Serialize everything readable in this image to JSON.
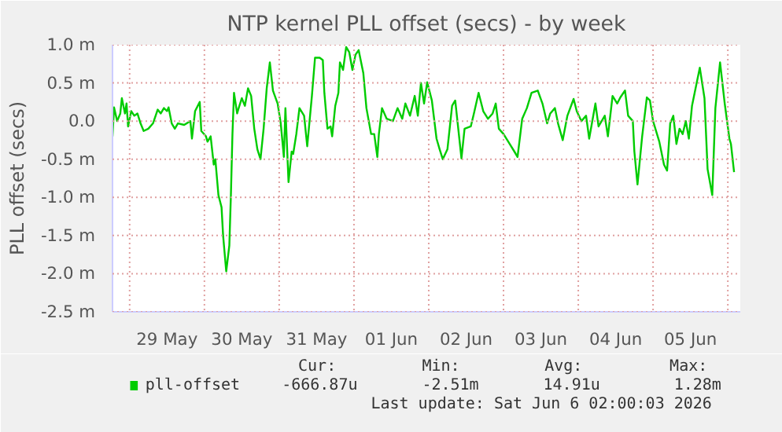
{
  "chart_data": {
    "type": "line",
    "title": "NTP kernel PLL offset (secs) - by week",
    "ylabel": "PLL offset (secs)",
    "xlim": [
      "2026-05-28T18:30",
      "2026-06-06T04:00"
    ],
    "ylim": [
      -2.5,
      1.0
    ],
    "yticks": [
      {
        "value": -2.5,
        "label": "-2.5 m"
      },
      {
        "value": -2.0,
        "label": "-2.0 m"
      },
      {
        "value": -1.5,
        "label": "-1.5 m"
      },
      {
        "value": -1.0,
        "label": "-1.0 m"
      },
      {
        "value": -0.5,
        "label": "-0.5 m"
      },
      {
        "value": 0,
        "label": "0.0"
      },
      {
        "value": 0.5,
        "label": "0.5 m"
      },
      {
        "value": 1.0,
        "label": "1.0 m"
      }
    ],
    "xticks": [
      {
        "value": "2026-05-29",
        "label": null
      },
      {
        "value": "2026-05-29T12:00",
        "label": "29 May"
      },
      {
        "value": "2026-05-30",
        "label": null
      },
      {
        "value": "2026-05-30T12:00",
        "label": "30 May"
      },
      {
        "value": "2026-05-31",
        "label": null
      },
      {
        "value": "2026-05-31T12:00",
        "label": "31 May"
      },
      {
        "value": "2026-06-01",
        "label": null
      },
      {
        "value": "2026-06-01T12:00",
        "label": "01 Jun"
      },
      {
        "value": "2026-06-02",
        "label": null
      },
      {
        "value": "2026-06-02T12:00",
        "label": "02 Jun"
      },
      {
        "value": "2026-06-03",
        "label": null
      },
      {
        "value": "2026-06-03T12:00",
        "label": "03 Jun"
      },
      {
        "value": "2026-06-04",
        "label": null
      },
      {
        "value": "2026-06-04T12:00",
        "label": "04 Jun"
      },
      {
        "value": "2026-06-05",
        "label": null
      },
      {
        "value": "2026-06-05T12:00",
        "label": "05 Jun"
      },
      {
        "value": "2026-06-06",
        "label": null
      }
    ],
    "grid": true,
    "legend": "bottom",
    "x": [
      "2026-05-28T18:30",
      "2026-05-28T19:00",
      "2026-05-28T20:00",
      "2026-05-28T21:00",
      "2026-05-28T21:30",
      "2026-05-28T22:30",
      "2026-05-28T23:00",
      "2026-05-28T23:30",
      "2026-05-29T00:30",
      "2026-05-29T01:30",
      "2026-05-29T02:30",
      "2026-05-29T03:30",
      "2026-05-29T04:30",
      "2026-05-29T06:00",
      "2026-05-29T07:30",
      "2026-05-29T09:00",
      "2026-05-29T10:00",
      "2026-05-29T11:00",
      "2026-05-29T12:00",
      "2026-05-29T12:30",
      "2026-05-29T13:30",
      "2026-05-29T14:30",
      "2026-05-29T15:30",
      "2026-05-29T17:30",
      "2026-05-29T19:30",
      "2026-05-29T20:00",
      "2026-05-29T21:00",
      "2026-05-29T22:30",
      "2026-05-29T23:00",
      "2026-05-30T00:30",
      "2026-05-30T01:00",
      "2026-05-30T02:00",
      "2026-05-30T03:00",
      "2026-05-30T03:30",
      "2026-05-30T04:30",
      "2026-05-30T05:30",
      "2026-05-30T06:00",
      "2026-05-30T07:00",
      "2026-05-30T08:00",
      "2026-05-30T08:30",
      "2026-05-30T09:00",
      "2026-05-30T09:30",
      "2026-05-30T10:30",
      "2026-05-30T11:00",
      "2026-05-30T12:00",
      "2026-05-30T13:00",
      "2026-05-30T14:00",
      "2026-05-30T15:00",
      "2026-05-30T16:00",
      "2026-05-30T17:00",
      "2026-05-30T18:00",
      "2026-05-30T19:00",
      "2026-05-30T20:00",
      "2026-05-30T21:00",
      "2026-05-30T22:00",
      "2026-05-30T23:30",
      "2026-05-31T00:30",
      "2026-05-31T01:30",
      "2026-05-31T02:00",
      "2026-05-31T03:00",
      "2026-05-31T04:00",
      "2026-05-31T04:30",
      "2026-05-31T05:30",
      "2026-05-31T06:30",
      "2026-05-31T08:00",
      "2026-05-31T09:00",
      "2026-05-31T10:30",
      "2026-05-31T11:30",
      "2026-05-31T13:00",
      "2026-05-31T14:00",
      "2026-05-31T14:30",
      "2026-05-31T15:30",
      "2026-05-31T16:30",
      "2026-05-31T17:00",
      "2026-05-31T18:00",
      "2026-05-31T19:00",
      "2026-05-31T19:30",
      "2026-05-31T20:30",
      "2026-05-31T21:30",
      "2026-05-31T22:30",
      "2026-05-31T23:30",
      "2026-06-01T00:30",
      "2026-06-01T01:30",
      "2026-06-01T03:00",
      "2026-06-01T04:00",
      "2026-06-01T05:30",
      "2026-06-01T06:30",
      "2026-06-01T07:30",
      "2026-06-01T08:00",
      "2026-06-01T09:00",
      "2026-06-01T10:30",
      "2026-06-01T12:30",
      "2026-06-01T14:00",
      "2026-06-01T15:30",
      "2026-06-01T16:30",
      "2026-06-01T18:00",
      "2026-06-01T19:30",
      "2026-06-01T20:30",
      "2026-06-01T21:30",
      "2026-06-01T22:30",
      "2026-06-01T23:30",
      "2026-06-02T01:00",
      "2026-06-02T02:30",
      "2026-06-02T03:30",
      "2026-06-02T04:30",
      "2026-06-02T06:00",
      "2026-06-02T07:30",
      "2026-06-02T08:30",
      "2026-06-02T10:30",
      "2026-06-02T11:30",
      "2026-06-02T13:30",
      "2026-06-02T14:30",
      "2026-06-02T16:00",
      "2026-06-02T17:30",
      "2026-06-02T19:00",
      "2026-06-02T20:30",
      "2026-06-02T21:30",
      "2026-06-02T22:30",
      "2026-06-03T00:00",
      "2026-06-03T02:00",
      "2026-06-03T03:30",
      "2026-06-03T04:30",
      "2026-06-03T06:00",
      "2026-06-03T07:30",
      "2026-06-03T09:00",
      "2026-06-03T11:00",
      "2026-06-03T12:30",
      "2026-06-03T14:00",
      "2026-06-03T15:00",
      "2026-06-03T16:30",
      "2026-06-03T17:30",
      "2026-06-03T19:00",
      "2026-06-03T20:30",
      "2026-06-03T22:30",
      "2026-06-03T23:30",
      "2026-06-04T01:00",
      "2026-06-04T02:30",
      "2026-06-04T03:30",
      "2026-06-04T05:30",
      "2026-06-04T06:30",
      "2026-06-04T08:30",
      "2026-06-04T09:30",
      "2026-06-04T11:00",
      "2026-06-04T12:30",
      "2026-06-04T13:30",
      "2026-06-04T15:00",
      "2026-06-04T16:00",
      "2026-06-04T17:30",
      "2026-06-04T18:00",
      "2026-06-04T19:00",
      "2026-06-04T20:30",
      "2026-06-04T22:00",
      "2026-06-04T23:00",
      "2026-06-05T00:00",
      "2026-06-05T02:00",
      "2026-06-05T03:30",
      "2026-06-05T04:30",
      "2026-06-05T05:30",
      "2026-06-05T06:30",
      "2026-06-05T07:30",
      "2026-06-05T08:30",
      "2026-06-05T09:30",
      "2026-06-05T10:30",
      "2026-06-05T11:30",
      "2026-06-05T12:30",
      "2026-06-05T14:00",
      "2026-06-05T15:00",
      "2026-06-05T16:30",
      "2026-06-05T17:30",
      "2026-06-05T19:00",
      "2026-06-05T20:00",
      "2026-06-05T21:30",
      "2026-06-05T23:00",
      "2026-06-06T00:30",
      "2026-06-06T01:00",
      "2026-06-06T02:00"
    ],
    "series": [
      {
        "name": "pll-offset",
        "color": "#00cc00",
        "values": [
          -0.2,
          0.18,
          0.0,
          0.1,
          0.3,
          0.1,
          0.23,
          -0.07,
          0.13,
          0.07,
          0.1,
          -0.03,
          -0.13,
          -0.1,
          -0.03,
          0.15,
          0.1,
          0.17,
          0.13,
          0.18,
          -0.03,
          -0.1,
          -0.03,
          -0.05,
          0.0,
          -0.23,
          0.13,
          0.25,
          -0.13,
          -0.2,
          -0.27,
          -0.2,
          -0.57,
          -0.5,
          -0.97,
          -1.13,
          -1.5,
          -1.97,
          -1.63,
          -0.97,
          -0.17,
          0.37,
          0.1,
          0.17,
          0.3,
          0.2,
          0.43,
          0.33,
          -0.1,
          -0.37,
          -0.5,
          -0.1,
          0.43,
          0.77,
          0.4,
          0.23,
          -0.03,
          -0.47,
          0.17,
          -0.8,
          -0.4,
          -0.43,
          -0.17,
          0.17,
          0.07,
          -0.33,
          0.33,
          0.83,
          0.83,
          0.8,
          0.37,
          -0.1,
          -0.07,
          -0.2,
          0.2,
          0.37,
          0.77,
          0.67,
          0.97,
          0.9,
          0.67,
          0.87,
          0.93,
          0.63,
          0.17,
          -0.17,
          -0.17,
          -0.47,
          -0.17,
          0.17,
          0.03,
          0.0,
          0.17,
          0.03,
          0.23,
          0.07,
          0.33,
          0.07,
          0.5,
          0.23,
          0.51,
          0.27,
          -0.23,
          -0.37,
          -0.5,
          -0.37,
          0.2,
          0.27,
          -0.49,
          -0.1,
          -0.07,
          0.1,
          0.37,
          0.13,
          0.03,
          0.1,
          0.23,
          -0.1,
          -0.17,
          -0.3,
          -0.4,
          -0.47,
          0.03,
          0.17,
          0.37,
          0.4,
          0.23,
          -0.03,
          0.1,
          0.17,
          -0.03,
          -0.25,
          0.07,
          0.29,
          0.13,
          0.0,
          0.07,
          -0.23,
          0.23,
          -0.07,
          0.07,
          -0.2,
          0.33,
          0.23,
          0.31,
          0.4,
          0.07,
          0.0,
          -0.4,
          -0.83,
          -0.2,
          0.31,
          0.27,
          0.0,
          -0.27,
          -0.57,
          -0.65,
          -0.03,
          0.07,
          -0.3,
          -0.1,
          -0.17,
          0.0,
          -0.23,
          0.2,
          0.5,
          0.7,
          0.3,
          -0.63,
          -0.97,
          0.17,
          0.77,
          0.23,
          -0.23,
          -0.3,
          -0.67
        ]
      }
    ],
    "annotations": [
      "Cur:",
      "Min:",
      "Avg:",
      "Max:",
      "-666.87u",
      "-2.51m",
      "14.91u",
      "1.28m",
      "Last update: Sat Jun  6 02:00:03 2026"
    ]
  }
}
